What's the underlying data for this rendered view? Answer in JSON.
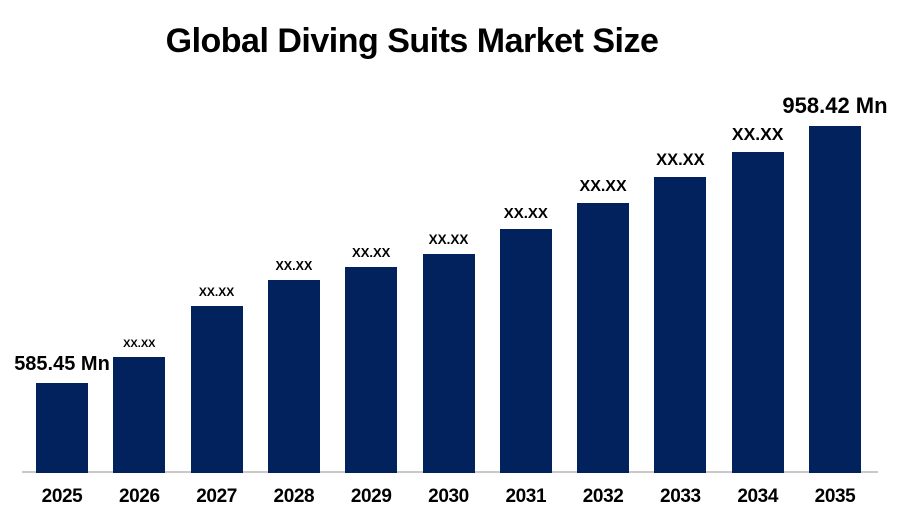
{
  "header": {
    "title": "Global Diving Suits Market Size"
  },
  "chart_data": {
    "type": "bar",
    "title": "Global Diving Suits Market Size",
    "categories": [
      "2025",
      "2026",
      "2027",
      "2028",
      "2029",
      "2030",
      "2031",
      "2032",
      "2033",
      "2034",
      "2035"
    ],
    "value_labels": [
      "585.45 Mn",
      "XX.XX",
      "XX.XX",
      "XX.XX",
      "XX.XX",
      "XX.XX",
      "XX.XX",
      "XX.XX",
      "XX.XX",
      "XX.XX",
      "958.42 Mn"
    ],
    "known_values_mn": {
      "2025": 585.45,
      "2035": 958.42
    },
    "estimated_values_mn": [
      585.45,
      623,
      697,
      735,
      754,
      773,
      809,
      847,
      884,
      921,
      958.42
    ],
    "unit": "Mn",
    "xlabel": "",
    "ylabel": "",
    "legend": "none",
    "gridlines": "off",
    "y_axis": "hidden",
    "colors": {
      "bar": "#02225E",
      "axis_line": "#C9C9C9",
      "background": "#FFFFFF",
      "text": "#000000"
    }
  }
}
